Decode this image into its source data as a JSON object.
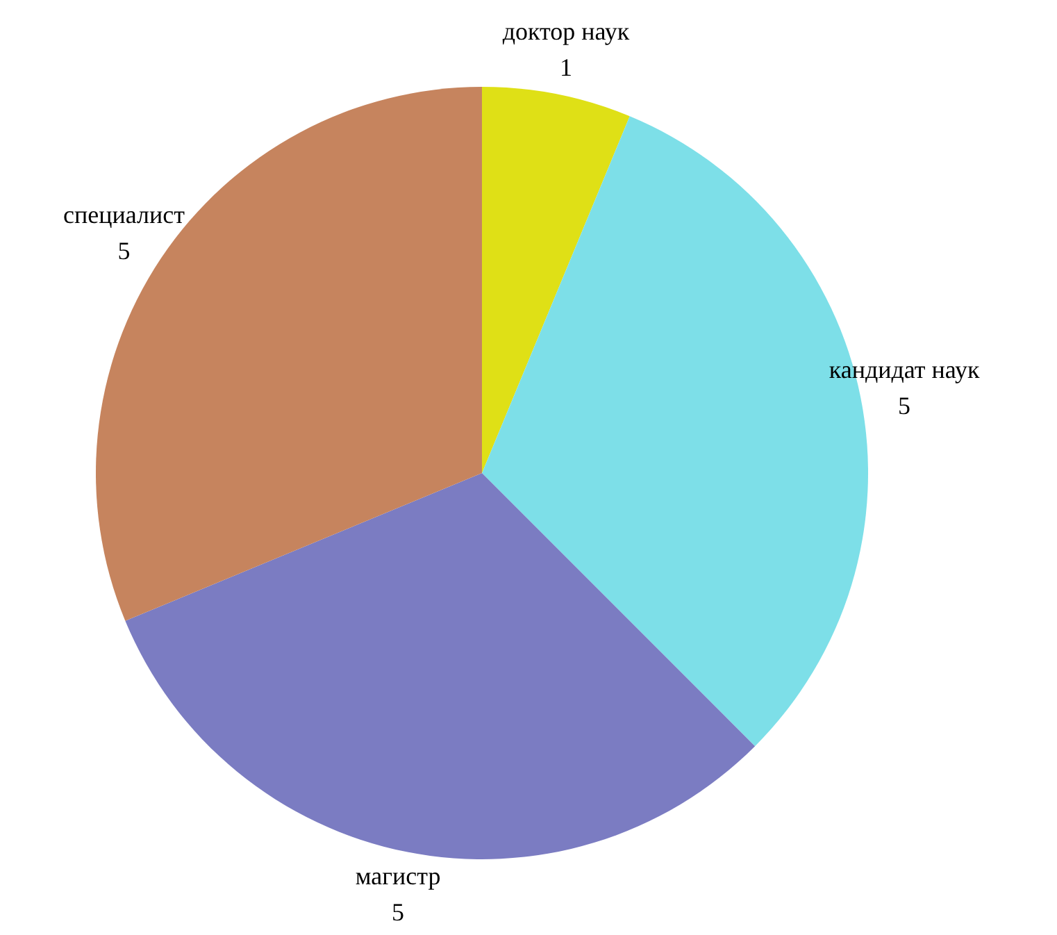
{
  "chart_data": {
    "type": "pie",
    "categories": [
      "доктор наук",
      "кандидат наук",
      "магистр",
      "специалист"
    ],
    "values": [
      1,
      5,
      5,
      5
    ],
    "colors": [
      "#dfe016",
      "#7ddfe8",
      "#7b7cc2",
      "#c6845e"
    ],
    "data_labels": true
  }
}
